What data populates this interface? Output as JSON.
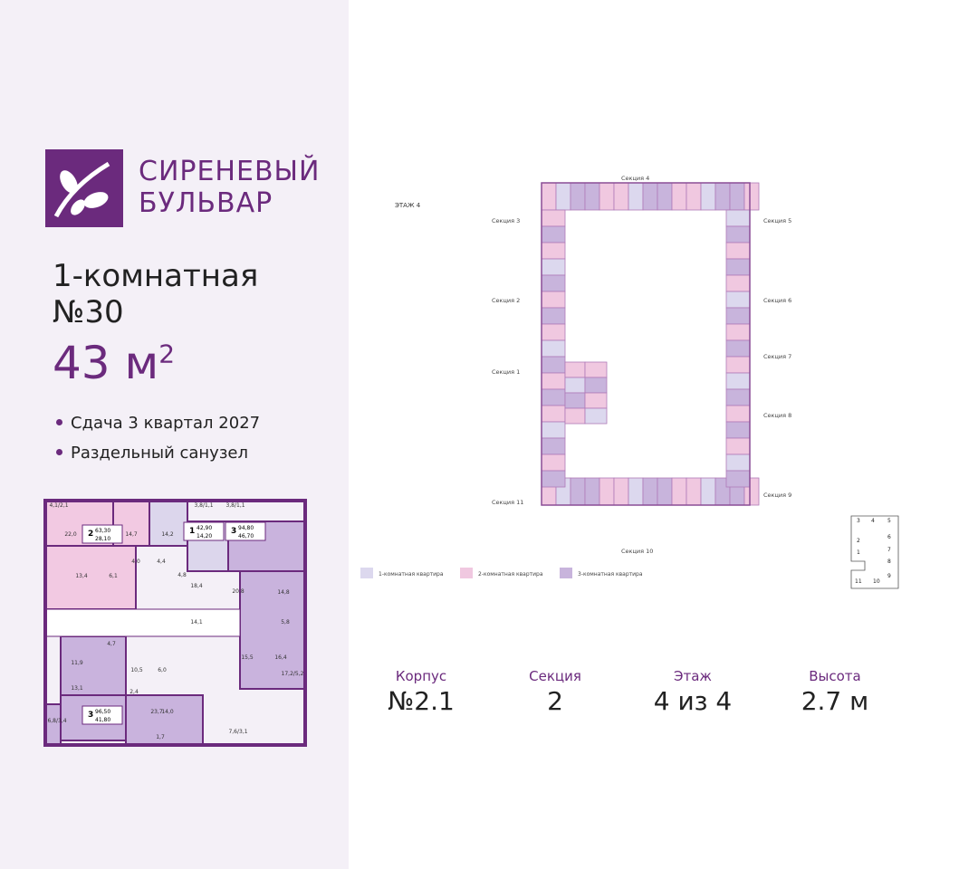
{
  "brand": {
    "line1": "СИРЕНЕВЫЙ",
    "line2": "БУЛЬВАР"
  },
  "apartment": {
    "type": "1-комнатная",
    "number": "№30",
    "area": "43 м",
    "area_sup": "2"
  },
  "features": [
    "Сдача 3 квартал 2027",
    "Раздельный санузел"
  ],
  "apartment_plan": {
    "rooms": [
      "4,1/2,1",
      "22,0",
      "14,7",
      "14,2",
      "3,8/1,1",
      "3,8/1,1",
      "13,4",
      "6,1",
      "4,0",
      "4,4",
      "4,8",
      "18,4",
      "20,8",
      "14,8",
      "14,1",
      "5,8",
      "15,5",
      "16,4",
      "11,9",
      "13,1",
      "10,5",
      "6,0",
      "2,4",
      "23,7",
      "14,0",
      "6,8/3,4",
      "7,6/3,1",
      "17,2/5,2",
      "4,7",
      "1,7"
    ],
    "units": [
      {
        "rooms": "2",
        "total": "63,30",
        "living": "28,10"
      },
      {
        "rooms": "1",
        "total": "42,90",
        "living": "14,20"
      },
      {
        "rooms": "3",
        "total": "94,80",
        "living": "46,70"
      },
      {
        "rooms": "3",
        "total": "96,50",
        "living": "41,80"
      }
    ]
  },
  "floor_plan": {
    "floor_label": "ЭТАЖ 4",
    "sections": [
      "Секция 4",
      "Секция 3",
      "Секция 5",
      "Секция 2",
      "Секция 6",
      "Секция 1",
      "Секция 7",
      "Секция 8",
      "Секция 11",
      "Секция 9",
      "Секция 10"
    ],
    "legend": [
      "1-комнатная квартира",
      "2-комнатная квартира",
      "3-комнатная квартира"
    ],
    "mini_map": [
      "3",
      "4",
      "5",
      "2",
      "6",
      "1",
      "7",
      "8",
      "9",
      "11",
      "10"
    ]
  },
  "info": [
    {
      "label": "Корпус",
      "value": "№2.1"
    },
    {
      "label": "Секция",
      "value": "2"
    },
    {
      "label": "Этаж",
      "value": "4 из 4"
    },
    {
      "label": "Высота",
      "value": "2.7 м"
    }
  ]
}
